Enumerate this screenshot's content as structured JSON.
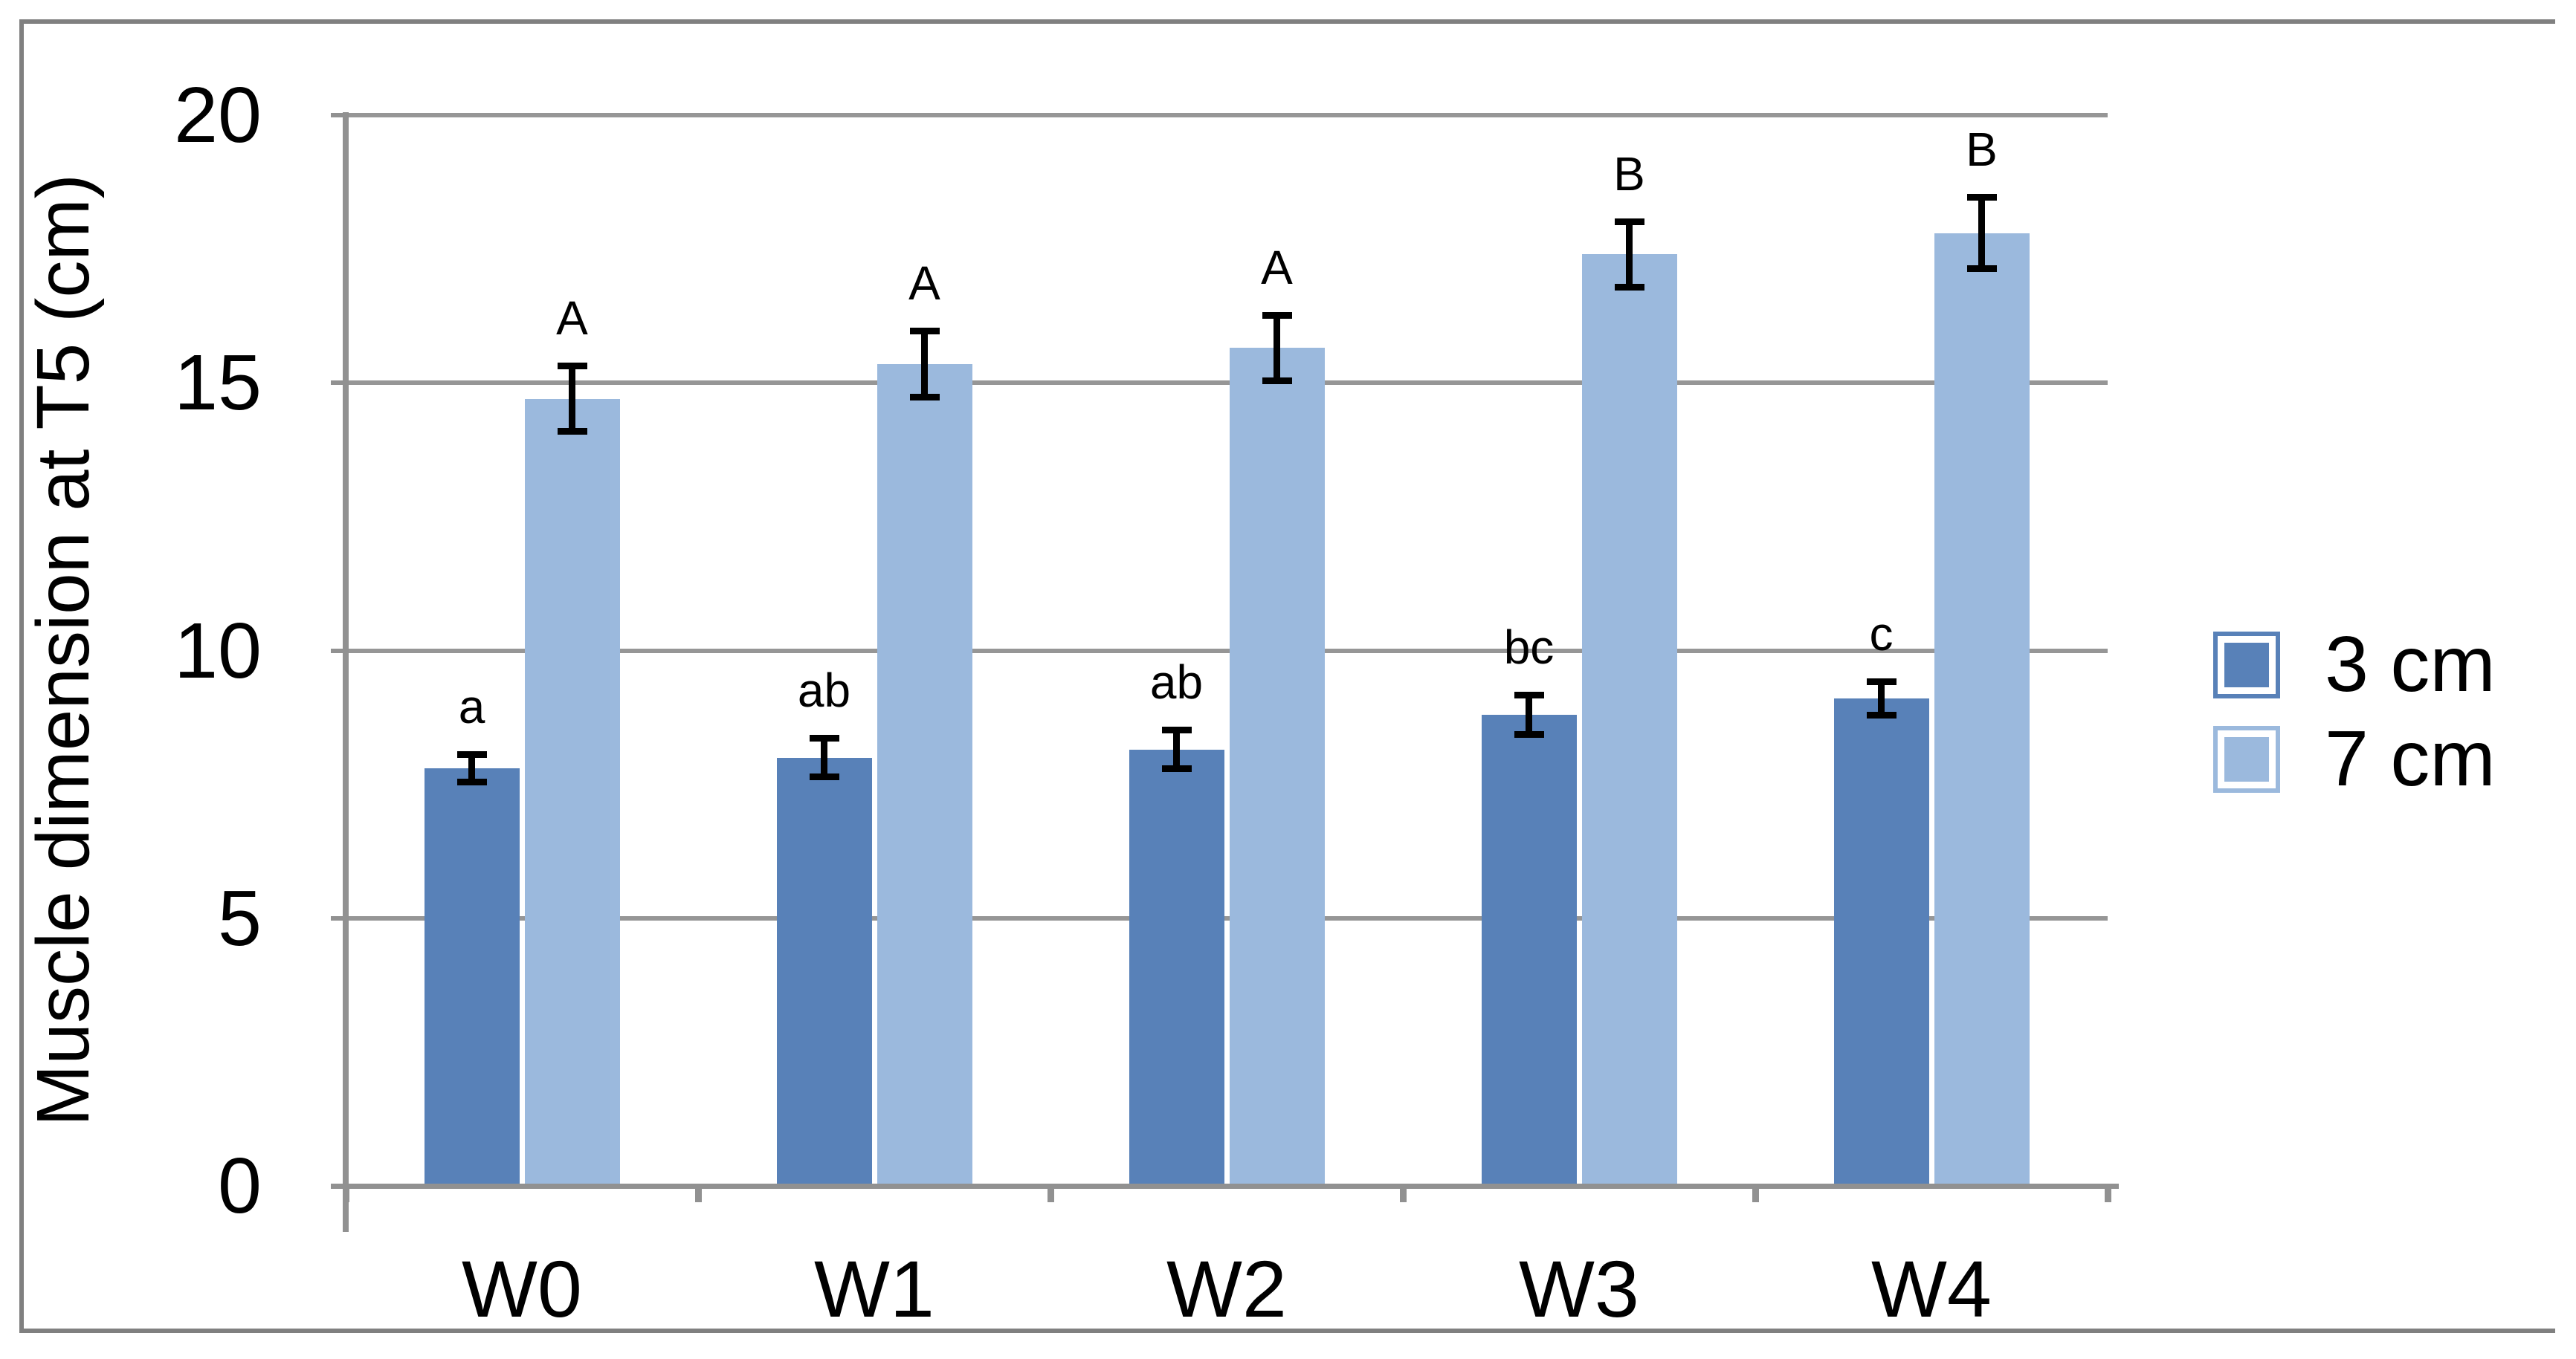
{
  "chart_data": {
    "type": "bar",
    "title": "",
    "xlabel": "",
    "ylabel": "Muscle dimension at T5 (cm)",
    "ylim": [
      0,
      20
    ],
    "yticks": [
      0,
      5,
      10,
      15,
      20
    ],
    "grid": true,
    "legend_position": "right",
    "categories": [
      "W0",
      "W1",
      "W2",
      "W3",
      "W4"
    ],
    "series": [
      {
        "name": "3 cm",
        "color": "#5881b8",
        "values": [
          7.8,
          8.0,
          8.15,
          8.8,
          9.1
        ],
        "errors": [
          0.2,
          0.3,
          0.3,
          0.3,
          0.25
        ],
        "letters": [
          "a",
          "ab",
          "ab",
          "bc",
          "c"
        ]
      },
      {
        "name": "7 cm",
        "color": "#9bb9dd",
        "values": [
          14.7,
          15.35,
          15.65,
          17.4,
          17.8
        ],
        "errors": [
          0.55,
          0.55,
          0.55,
          0.55,
          0.6
        ],
        "letters": [
          "A",
          "A",
          "A",
          "B",
          "B"
        ]
      }
    ]
  },
  "colors": {
    "frame": "#808080",
    "gridline": "#969696",
    "axis": "#919191",
    "error_bar": "#000000",
    "text": "#000000",
    "background": "#ffffff"
  }
}
